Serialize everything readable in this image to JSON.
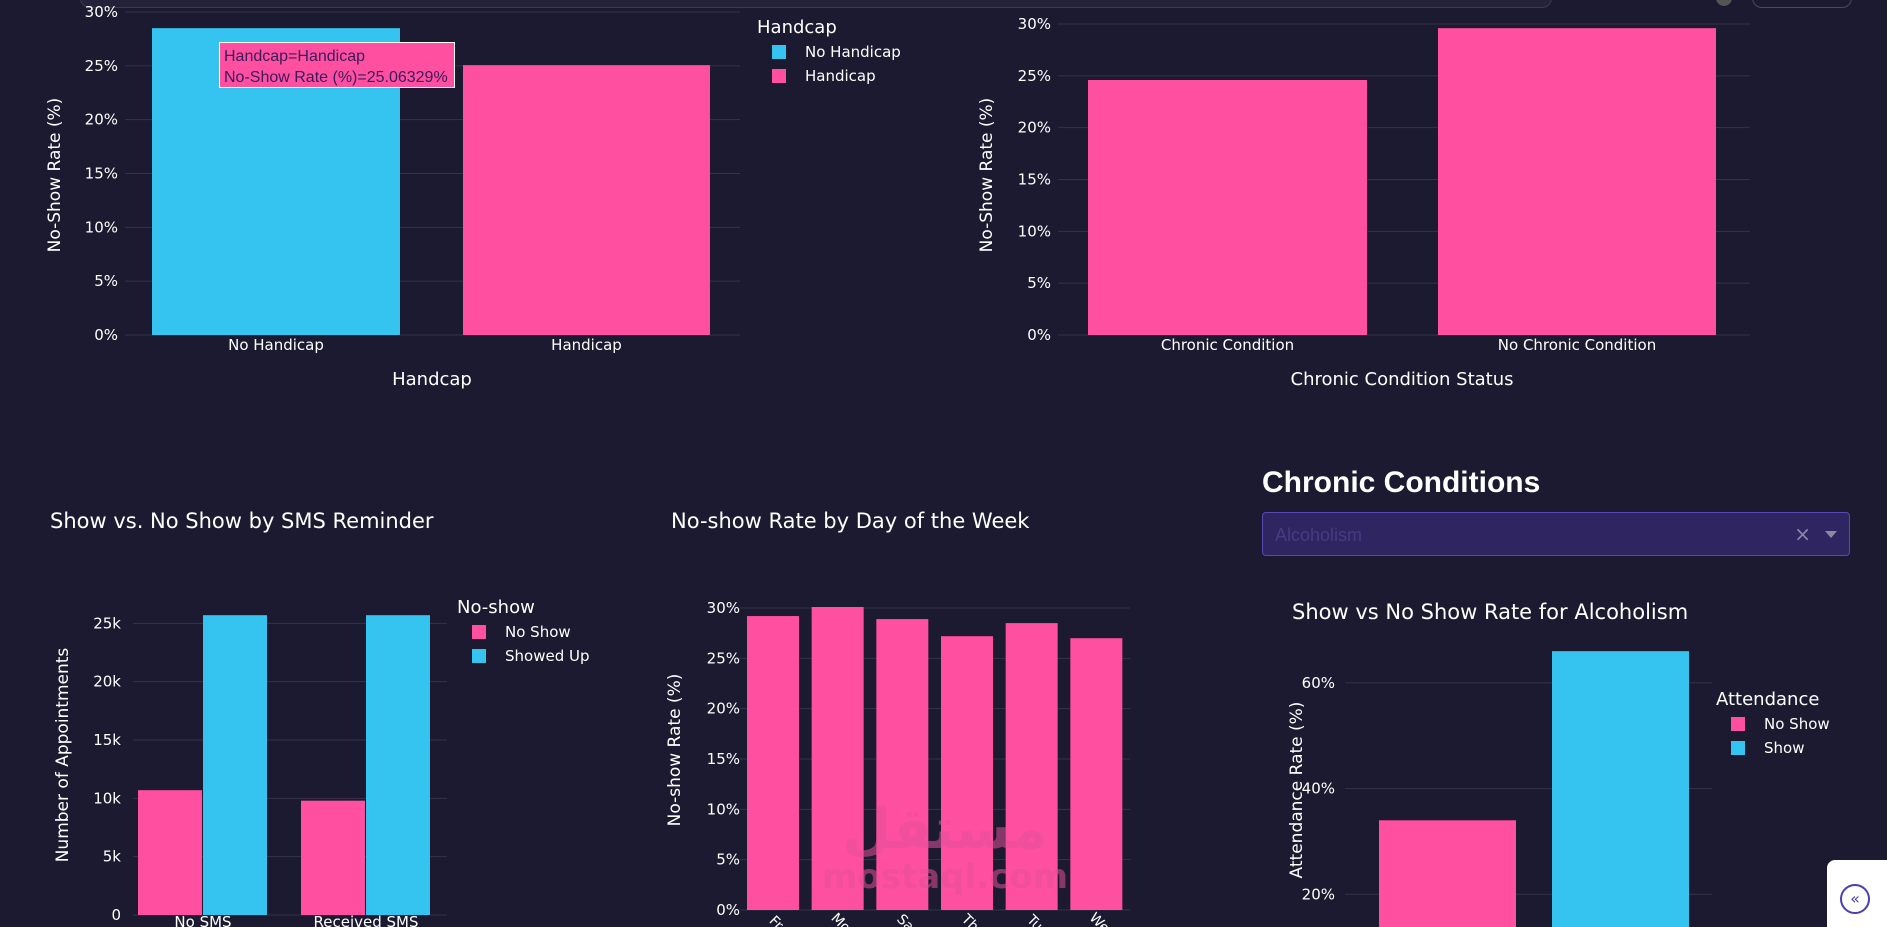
{
  "colors": {
    "background": "#1b1a31",
    "pink": "#ff4fa0",
    "cyan": "#35c3ef",
    "grid": "#34334b",
    "text": "#ffffff"
  },
  "tooltip": {
    "line1": "Handcap=Handicap",
    "line2": "No-Show Rate (%)=25.06329%"
  },
  "chronic_panel": {
    "title": "Chronic Conditions",
    "dropdown_value": "Alcoholism",
    "clear_glyph": "×"
  },
  "watermark": {
    "arabic": "مستقل",
    "latin": "mostaql.com"
  },
  "collapse_button": {
    "glyph": "«"
  },
  "chart_data": [
    {
      "id": "handcap",
      "type": "bar",
      "title": "",
      "xlabel": "Handcap",
      "ylabel": "No-Show Rate (%)",
      "ylim": [
        0,
        30
      ],
      "yticks": [
        "0%",
        "5%",
        "10%",
        "15%",
        "20%",
        "25%",
        "30%"
      ],
      "categories": [
        "No Handicap",
        "Handicap"
      ],
      "values": [
        28.5,
        25.06329
      ],
      "colors": [
        "#35c3ef",
        "#ff4fa0"
      ],
      "legend": {
        "title": "Handcap",
        "position": "top-right",
        "items": [
          {
            "name": "No Handicap",
            "color": "#35c3ef"
          },
          {
            "name": "Handicap",
            "color": "#ff4fa0"
          }
        ]
      },
      "grid": true
    },
    {
      "id": "chronic",
      "type": "bar",
      "title": "",
      "xlabel": "Chronic Condition Status",
      "ylabel": "No-Show Rate (%)",
      "ylim": [
        0,
        30
      ],
      "yticks": [
        "0%",
        "5%",
        "10%",
        "15%",
        "20%",
        "25%",
        "30%"
      ],
      "categories": [
        "Chronic Condition",
        "No Chronic Condition"
      ],
      "values": [
        24.6,
        29.6
      ],
      "colors": [
        "#ff4fa0",
        "#ff4fa0"
      ],
      "grid": true
    },
    {
      "id": "sms",
      "type": "bar",
      "title": "Show vs. No Show by SMS Reminder",
      "xlabel": "",
      "ylabel": "Number of Appointments",
      "ylim": [
        0,
        27000
      ],
      "yticks": [
        "0",
        "5k",
        "10k",
        "15k",
        "20k",
        "25k"
      ],
      "categories": [
        "No SMS",
        "Received SMS"
      ],
      "series": [
        {
          "name": "No Show",
          "color": "#ff4fa0",
          "values": [
            10700,
            9800
          ]
        },
        {
          "name": "Showed Up",
          "color": "#35c3ef",
          "values": [
            25700,
            25700
          ]
        }
      ],
      "legend": {
        "title": "No-show",
        "position": "top-right"
      },
      "grid": true
    },
    {
      "id": "dow",
      "type": "bar",
      "title": "No-show Rate by Day of the Week",
      "xlabel": "",
      "ylabel": "No-show Rate (%)",
      "ylim": [
        0,
        30
      ],
      "yticks": [
        "0%",
        "5%",
        "10%",
        "15%",
        "20%",
        "25%",
        "30%"
      ],
      "categories": [
        "Fr",
        "Mo",
        "Sa",
        "Th",
        "Tu",
        "We"
      ],
      "values": [
        29.2,
        30.1,
        28.9,
        27.2,
        28.5,
        27.0
      ],
      "colors": [
        "#ff4fa0"
      ],
      "grid": true
    },
    {
      "id": "alcoholism",
      "type": "bar",
      "title": "Show vs No Show Rate for Alcoholism",
      "xlabel": "",
      "ylabel": "Attendance Rate (%)",
      "ylim": [
        0,
        70
      ],
      "yticks": [
        "20%",
        "40%",
        "60%"
      ],
      "categories": [
        "No Show",
        "Show"
      ],
      "values": [
        34,
        66
      ],
      "colors": [
        "#ff4fa0",
        "#35c3ef"
      ],
      "legend": {
        "title": "Attendance",
        "position": "top-right",
        "items": [
          {
            "name": "No Show",
            "color": "#ff4fa0"
          },
          {
            "name": "Show",
            "color": "#35c3ef"
          }
        ]
      },
      "grid": true
    }
  ]
}
